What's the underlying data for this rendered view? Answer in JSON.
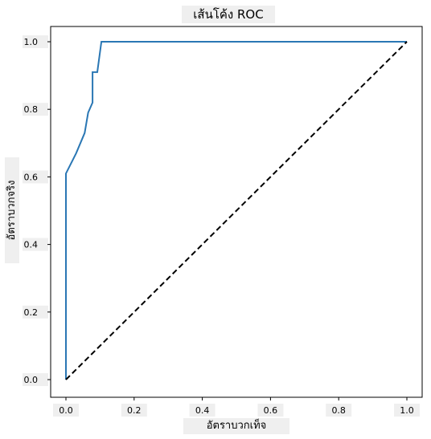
{
  "chart_data": {
    "type": "line",
    "title": "เส้นโค้ง ROC",
    "xlabel": "อัตราบวกเท็จ",
    "ylabel": "อัตราบวกจริง",
    "xlim": [
      0.0,
      1.0
    ],
    "ylim": [
      0.0,
      1.0
    ],
    "xticks": [
      "0.0",
      "0.2",
      "0.4",
      "0.6",
      "0.8",
      "1.0"
    ],
    "yticks": [
      "0.0",
      "0.2",
      "0.4",
      "0.6",
      "0.8",
      "1.0"
    ],
    "grid": false,
    "series": [
      {
        "style": "solid",
        "color": "#2a77b4",
        "x": [
          0.0,
          0.0,
          0.0,
          0.03,
          0.03,
          0.055,
          0.065,
          0.078,
          0.078,
          0.092,
          0.092,
          0.104,
          1.0
        ],
        "y": [
          0.0,
          0.61,
          0.61,
          0.67,
          0.67,
          0.73,
          0.79,
          0.82,
          0.91,
          0.91,
          0.91,
          1.0,
          1.0
        ]
      },
      {
        "style": "dashed",
        "color": "#000000",
        "x": [
          0.0,
          1.0
        ],
        "y": [
          0.0,
          1.0
        ]
      }
    ]
  }
}
